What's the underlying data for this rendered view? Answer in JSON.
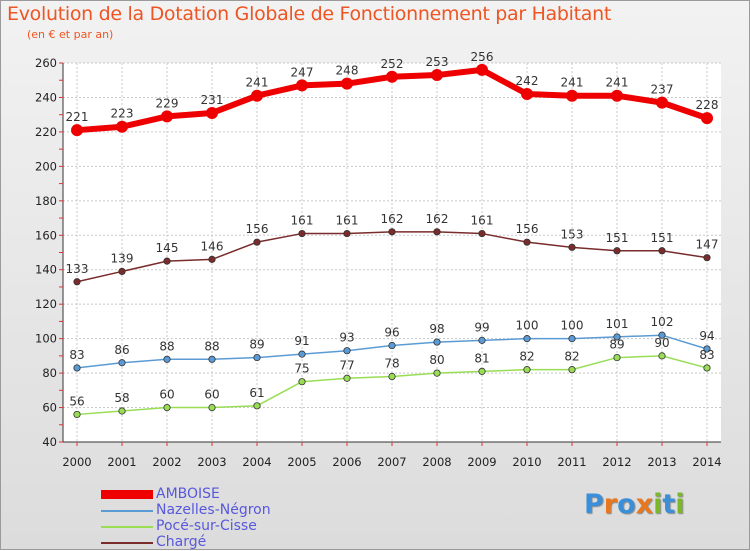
{
  "header": {
    "title": "Evolution de la Dotation Globale de Fonctionnement par Habitant",
    "subtitle": "(en € et par an)"
  },
  "logo": {
    "text": "Proxiti",
    "letters": [
      "P",
      "r",
      "o",
      "x",
      "i",
      "t",
      "i"
    ],
    "colors": [
      "#3a8fd8",
      "#e87820",
      "#3a8fd8",
      "#e87820",
      "#7ab828",
      "#3a8fd8",
      "#7ab828"
    ]
  },
  "chart_data": {
    "type": "line",
    "title": "Evolution de la Dotation Globale de Fonctionnement par Habitant",
    "subtitle": "(en € et par an)",
    "x": [
      2000,
      2001,
      2002,
      2003,
      2004,
      2005,
      2006,
      2007,
      2008,
      2009,
      2010,
      2011,
      2012,
      2013,
      2014
    ],
    "ylim": [
      40,
      260
    ],
    "yticks": [
      40,
      60,
      80,
      100,
      120,
      140,
      160,
      180,
      200,
      220,
      240,
      260
    ],
    "grid": true,
    "series": [
      {
        "name": "AMBOISE",
        "color": "#ee0000",
        "values": [
          221,
          223,
          229,
          231,
          241,
          247,
          248,
          252,
          253,
          256,
          242,
          241,
          241,
          237,
          228
        ]
      },
      {
        "name": "Nazelles-Négron",
        "color": "#5b9bd5",
        "values": [
          83,
          86,
          88,
          88,
          89,
          91,
          93,
          96,
          98,
          99,
          100,
          100,
          101,
          102,
          94
        ]
      },
      {
        "name": "Pocé-sur-Cisse",
        "color": "#99dd55",
        "values": [
          56,
          58,
          60,
          60,
          61,
          75,
          77,
          78,
          80,
          81,
          82,
          82,
          89,
          90,
          83
        ]
      },
      {
        "name": "Chargé",
        "color": "#7a2b2b",
        "values": [
          133,
          139,
          145,
          146,
          156,
          161,
          161,
          162,
          162,
          161,
          156,
          153,
          151,
          151,
          147
        ]
      }
    ]
  }
}
